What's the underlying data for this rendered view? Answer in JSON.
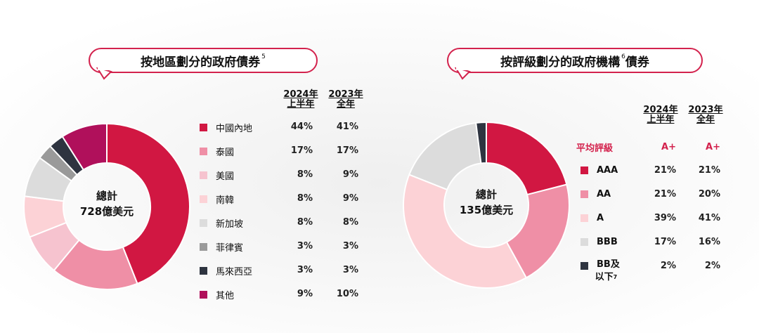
{
  "colors": {
    "accent": "#d3224d",
    "c1": "#d11742",
    "c2": "#ef8fa6",
    "c3": "#f6c3cf",
    "c4": "#fcd2d6",
    "c5": "#dcdcdc",
    "c6": "#9a9a9a",
    "c7": "#2e3440",
    "c8": "#b0105b"
  },
  "left": {
    "title": "按地區劃分的政府債券",
    "title_fn": "5",
    "col1": [
      "2024年",
      "上半年"
    ],
    "col2": [
      "2023年",
      "全年"
    ],
    "center_line1": "總計",
    "center_line2": "728億美元",
    "rows": [
      {
        "label": "中國內地",
        "v1": "44%",
        "v2": "41%"
      },
      {
        "label": "泰國",
        "v1": "17%",
        "v2": "17%"
      },
      {
        "label": "美國",
        "v1": "8%",
        "v2": "9%"
      },
      {
        "label": "南韓",
        "v1": "8%",
        "v2": "9%"
      },
      {
        "label": "新加坡",
        "v1": "8%",
        "v2": "8%"
      },
      {
        "label": "菲律賓",
        "v1": "3%",
        "v2": "3%"
      },
      {
        "label": "馬來西亞",
        "v1": "3%",
        "v2": "3%"
      },
      {
        "label": "其他",
        "v1": "9%",
        "v2": "10%"
      }
    ]
  },
  "right": {
    "title": "按評級劃分的政府機構",
    "title_fn": "6",
    "title_tail": "債券",
    "col1": [
      "2024年",
      "上半年"
    ],
    "col2": [
      "2023年",
      "全年"
    ],
    "center_line1": "總計",
    "center_line2": "135億美元",
    "avg_label": "平均評級",
    "avg_v1": "A+",
    "avg_v2": "A+",
    "rows": [
      {
        "label": "AAA",
        "v1": "21%",
        "v2": "21%"
      },
      {
        "label": "AA",
        "v1": "21%",
        "v2": "20%"
      },
      {
        "label": "A",
        "v1": "39%",
        "v2": "41%"
      },
      {
        "label": "BBB",
        "v1": "17%",
        "v2": "16%"
      },
      {
        "label": "BB及",
        "label2": "以下",
        "label_fn": "7",
        "v1": "2%",
        "v2": "2%"
      }
    ]
  },
  "chart_data": [
    {
      "type": "pie",
      "title": "按地區劃分的政府債券",
      "categories": [
        "中國內地",
        "泰國",
        "美國",
        "南韓",
        "新加坡",
        "菲律賓",
        "馬來西亞",
        "其他"
      ],
      "series": [
        {
          "name": "2024年上半年",
          "values": [
            44,
            17,
            8,
            8,
            8,
            3,
            3,
            9
          ]
        },
        {
          "name": "2023年全年",
          "values": [
            41,
            17,
            9,
            9,
            8,
            3,
            3,
            10
          ]
        }
      ]
    },
    {
      "type": "pie",
      "title": "按評級劃分的政府機構債券",
      "categories": [
        "AAA",
        "AA",
        "A",
        "BBB",
        "BB及以下"
      ],
      "series": [
        {
          "name": "2024年上半年",
          "values": [
            21,
            21,
            39,
            17,
            2
          ]
        },
        {
          "name": "2023年全年",
          "values": [
            21,
            20,
            41,
            16,
            2
          ]
        }
      ]
    }
  ]
}
